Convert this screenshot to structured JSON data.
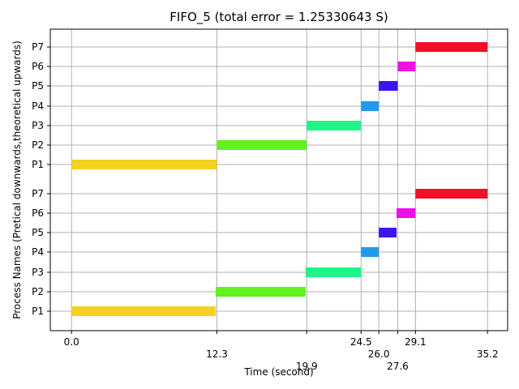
{
  "chart_data": {
    "type": "gantt",
    "title": "FIFO_5 (total error = 1.25330643 S)",
    "xlabel": "Time (second)",
    "ylabel": "Process Names (Pretical downwards,theoretical upwards)",
    "grid": true,
    "xlim": [
      -1.8,
      36.9
    ],
    "x_ticks": [
      {
        "value": 0.0,
        "label": "0.0",
        "level": 0
      },
      {
        "value": 12.3,
        "label": "12.3",
        "level": 1
      },
      {
        "value": 19.9,
        "label": "19.9",
        "level": 2
      },
      {
        "value": 24.5,
        "label": "24.5",
        "level": 0
      },
      {
        "value": 26.0,
        "label": "26.0",
        "level": 1
      },
      {
        "value": 27.6,
        "label": "27.6",
        "level": 2
      },
      {
        "value": 29.1,
        "label": "29.1",
        "level": 0
      },
      {
        "value": 35.2,
        "label": "35.2",
        "level": 1
      }
    ],
    "y_labels_lower": [
      "P1",
      "P2",
      "P3",
      "P4",
      "P5",
      "P6",
      "P7"
    ],
    "y_labels_upper": [
      "P1",
      "P2",
      "P3",
      "P4",
      "P5",
      "P6",
      "P7"
    ],
    "series": [
      {
        "group": "practical",
        "tasks": [
          {
            "process": "P1",
            "start": 0.0,
            "end": 12.2,
            "color": "#f5d21f"
          },
          {
            "process": "P2",
            "start": 12.2,
            "end": 19.8,
            "color": "#63f01f"
          },
          {
            "process": "P3",
            "start": 19.8,
            "end": 24.5,
            "color": "#1ff586"
          },
          {
            "process": "P4",
            "start": 24.5,
            "end": 26.0,
            "color": "#1e9bef"
          },
          {
            "process": "P5",
            "start": 26.0,
            "end": 27.5,
            "color": "#3d14f2"
          },
          {
            "process": "P6",
            "start": 27.5,
            "end": 29.1,
            "color": "#ee10e6"
          },
          {
            "process": "P7",
            "start": 29.1,
            "end": 35.2,
            "color": "#f20f28"
          }
        ]
      },
      {
        "group": "theoretical",
        "tasks": [
          {
            "process": "P1",
            "start": 0.0,
            "end": 12.3,
            "color": "#f5d21f"
          },
          {
            "process": "P2",
            "start": 12.3,
            "end": 19.9,
            "color": "#63f01f"
          },
          {
            "process": "P3",
            "start": 19.9,
            "end": 24.5,
            "color": "#1ff586"
          },
          {
            "process": "P4",
            "start": 24.5,
            "end": 26.0,
            "color": "#1e9bef"
          },
          {
            "process": "P5",
            "start": 26.0,
            "end": 27.6,
            "color": "#3d14f2"
          },
          {
            "process": "P6",
            "start": 27.6,
            "end": 29.1,
            "color": "#ee10e6"
          },
          {
            "process": "P7",
            "start": 29.1,
            "end": 35.2,
            "color": "#f20f28"
          }
        ]
      }
    ]
  }
}
